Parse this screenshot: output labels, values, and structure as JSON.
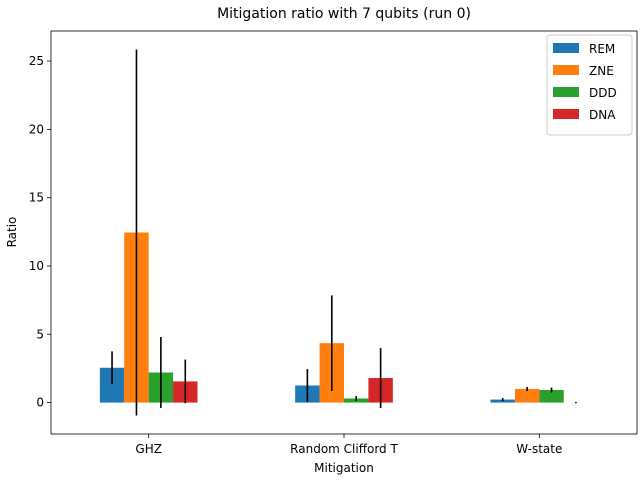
{
  "chart_data": {
    "type": "bar",
    "title": "Mitigation ratio with 7 qubits (run 0)",
    "xlabel": "Mitigation",
    "ylabel": "Ratio",
    "ylim": [
      -2.3,
      27.2
    ],
    "yticks": [
      0,
      5,
      10,
      15,
      20,
      25
    ],
    "categories": [
      "GHZ",
      "Random Clifford T",
      "W-state"
    ],
    "series": [
      {
        "name": "REM",
        "color": "#1f77b4",
        "values": [
          2.55,
          1.25,
          0.22
        ],
        "errors": [
          1.2,
          1.2,
          0.12
        ]
      },
      {
        "name": "ZNE",
        "color": "#ff7f0e",
        "values": [
          12.45,
          4.35,
          1.0
        ],
        "errors": [
          13.4,
          3.5,
          0.15
        ]
      },
      {
        "name": "DDD",
        "color": "#2ca02c",
        "values": [
          2.2,
          0.3,
          0.92
        ],
        "errors": [
          2.6,
          0.18,
          0.18
        ]
      },
      {
        "name": "DNA",
        "color": "#d62728",
        "values": [
          1.55,
          1.8,
          0.0
        ],
        "errors": [
          1.6,
          2.2,
          0.05
        ]
      }
    ],
    "legend_position": "top-right",
    "grid": false
  }
}
